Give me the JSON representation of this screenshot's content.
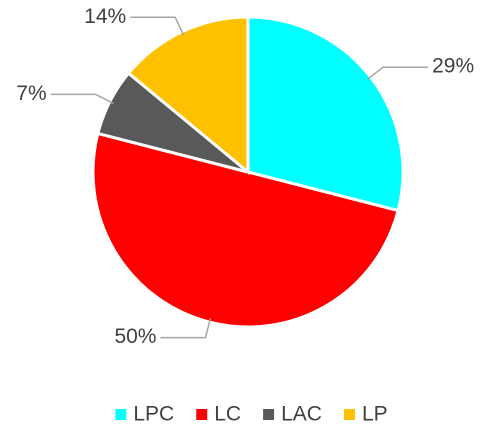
{
  "chart_data": {
    "type": "pie",
    "categories": [
      "LPC",
      "LC",
      "LAC",
      "LP"
    ],
    "values": [
      29,
      50,
      7,
      14
    ],
    "value_labels": [
      "29%",
      "50%",
      "7%",
      "14%"
    ],
    "colors": [
      "#00ffff",
      "#ff0000",
      "#595959",
      "#ffc000"
    ],
    "legend": "bottom"
  }
}
